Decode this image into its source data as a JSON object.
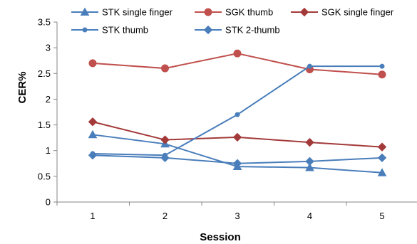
{
  "chart_data": {
    "type": "line",
    "title": "",
    "xlabel": "Session",
    "ylabel": "CER%",
    "categories": [
      "1",
      "2",
      "3",
      "4",
      "5"
    ],
    "ylim": [
      0,
      3.5
    ],
    "yticks": [
      "0",
      "0.5",
      "1",
      "1.5",
      "2",
      "2.5",
      "3",
      "3.5"
    ],
    "grid": false,
    "legend_position": "top",
    "series": [
      {
        "name": "STK single finger",
        "color": "#4a7ebb",
        "marker": "triangle",
        "values": [
          1.31,
          1.13,
          0.69,
          0.67,
          0.57
        ]
      },
      {
        "name": "SGK thumb",
        "color": "#c0504d",
        "marker": "circle",
        "values": [
          2.7,
          2.6,
          2.89,
          2.58,
          2.48
        ]
      },
      {
        "name": "SGK single finger",
        "color": "#a33a3a",
        "marker": "diamond",
        "values": [
          1.56,
          1.21,
          1.26,
          1.16,
          1.07
        ]
      },
      {
        "name": "STK thumb",
        "color": "#4a7ebb",
        "marker": "small-circle",
        "values": [
          0.94,
          0.91,
          1.7,
          2.64,
          2.64
        ]
      },
      {
        "name": "STK 2-thumb",
        "color": "#4a7ebb",
        "marker": "diamond",
        "values": [
          0.91,
          0.86,
          0.75,
          0.79,
          0.86
        ]
      }
    ]
  }
}
